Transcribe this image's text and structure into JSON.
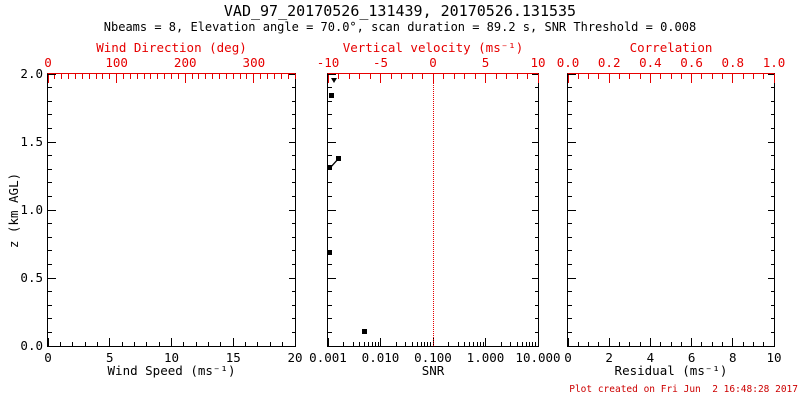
{
  "header": {
    "title": "VAD_97_20170526_131439, 20170526.131535",
    "subtitle": "Nbeams = 8, Elevation angle = 70.0°, scan duration = 89.2 s, SNR Threshold = 0.008"
  },
  "footer": {
    "created_text": "Plot created on Fri Jun  2 16:48:28 2017"
  },
  "colors": {
    "axis_red": "#e60000",
    "footer_red": "#cc0000",
    "frame": "#000000",
    "marker": "#000000",
    "background": "#ffffff"
  },
  "chart_data": {
    "type": "scatter",
    "title": "VAD_97_20170526_131439, 20170526.131535",
    "subtitle": "Nbeams = 8, Elevation angle = 70.0°, scan duration = 89.2 s, SNR Threshold = 0.008",
    "ylabel": "z (km AGL)",
    "ylim": [
      0,
      2
    ],
    "y_majors": [
      0,
      0.5,
      1,
      1.5,
      2
    ],
    "y_major_labels": [
      "0.0",
      "0.5",
      "1.0",
      "1.5",
      "2.0"
    ],
    "y_minor_step": 0.1,
    "grid": false,
    "panels": [
      {
        "name": "wind-speed",
        "top_axis": {
          "label": "Wind Direction (deg)",
          "scale": "linear",
          "range": [
            0,
            360
          ],
          "majors": [
            0,
            100,
            200,
            300
          ],
          "major_labels": [
            "0",
            "100",
            "200",
            "300"
          ],
          "minor_step": 10
        },
        "bottom_axis": {
          "label": "Wind Speed (ms⁻¹)",
          "scale": "linear",
          "range": [
            0,
            20
          ],
          "majors": [
            0,
            5,
            10,
            15,
            20
          ],
          "major_labels": [
            "0",
            "5",
            "10",
            "15",
            "20"
          ],
          "minor_step": 1
        },
        "points": [],
        "segments": []
      },
      {
        "name": "snr",
        "top_axis": {
          "label": "Vertical velocity (ms⁻¹)",
          "scale": "linear",
          "range": [
            -10,
            10
          ],
          "majors": [
            -10,
            -5,
            0,
            5,
            10
          ],
          "major_labels": [
            "-10",
            "-5",
            "0",
            "5",
            "10"
          ],
          "minor_step": 1
        },
        "bottom_axis": {
          "label": "SNR",
          "scale": "log",
          "range": [
            0.001,
            10
          ],
          "majors": [
            0.001,
            0.01,
            0.1,
            1,
            10
          ],
          "major_labels": [
            "0.001",
            "0.010",
            "0.100",
            "1.000",
            "10.000"
          ]
        },
        "reference_line": {
          "snr": 0.1,
          "style": "dotted"
        },
        "points": [
          {
            "snr": 0.0013,
            "z": 1.95,
            "marker": "triangle-down"
          },
          {
            "snr": 0.0012,
            "z": 1.84,
            "marker": "square"
          },
          {
            "snr": 0.0016,
            "z": 1.38,
            "marker": "square"
          },
          {
            "snr": 0.0011,
            "z": 1.31,
            "marker": "square"
          },
          {
            "snr": 0.0011,
            "z": 0.69,
            "marker": "square"
          },
          {
            "snr": 0.005,
            "z": 0.11,
            "marker": "square"
          }
        ],
        "segments": [
          [
            2,
            3
          ]
        ]
      },
      {
        "name": "residual",
        "top_axis": {
          "label": "Correlation",
          "scale": "linear",
          "range": [
            0,
            1
          ],
          "majors": [
            0,
            0.2,
            0.4,
            0.6,
            0.8,
            1.0
          ],
          "major_labels": [
            "0.0",
            "0.2",
            "0.4",
            "0.6",
            "0.8",
            "1.0"
          ],
          "minor_step": 0.05
        },
        "bottom_axis": {
          "label": "Residual (ms⁻¹)",
          "scale": "linear",
          "range": [
            0,
            10
          ],
          "majors": [
            0,
            2,
            4,
            6,
            8,
            10
          ],
          "major_labels": [
            "0",
            "2",
            "4",
            "6",
            "8",
            "10"
          ],
          "minor_step": 0.5
        },
        "points": [],
        "segments": []
      }
    ]
  }
}
